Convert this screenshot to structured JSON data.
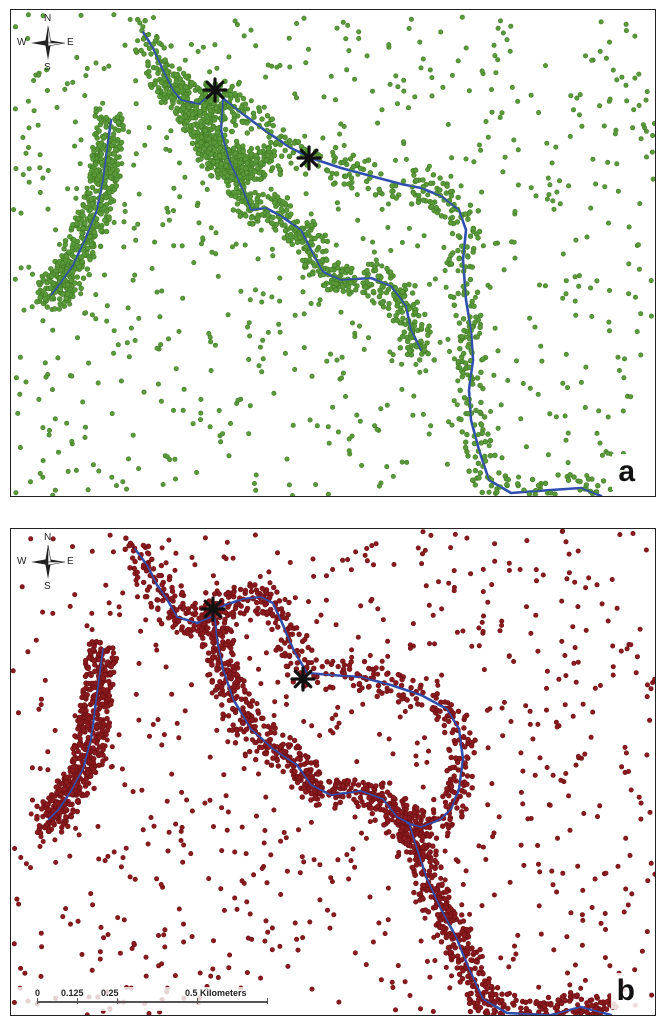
{
  "panels": [
    {
      "id": "a",
      "letter": "a",
      "point_color": "#5b9a3a",
      "point_edge": "#3f7a24",
      "seed": 7
    },
    {
      "id": "b",
      "letter": "b",
      "point_color": "#8a1a1e",
      "point_edge": "#6a0f12",
      "seed": 19
    }
  ],
  "river_color": "#2f4fb0",
  "marker_icon": "asterisk-icon",
  "compass": {
    "n": "N",
    "s": "S",
    "e": "E",
    "w": "W"
  },
  "scale": {
    "t0": "0",
    "t1": "0.125",
    "t2": "0.25",
    "t3": "0.5 Kilometers"
  }
}
